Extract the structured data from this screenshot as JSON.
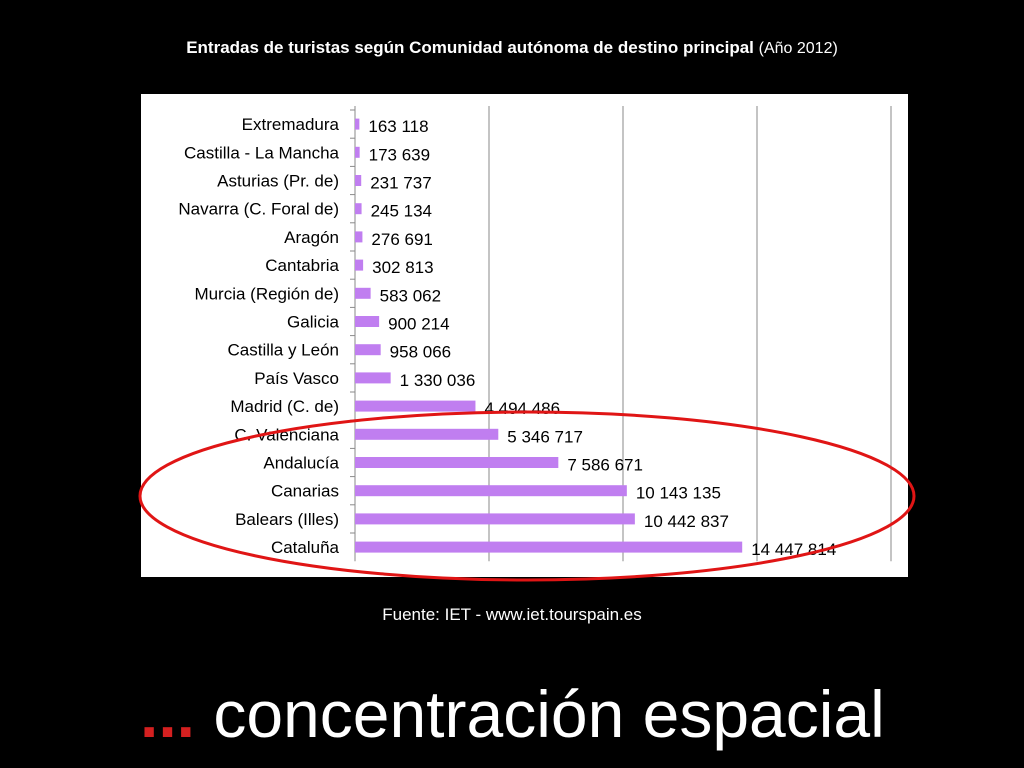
{
  "title": {
    "main": "Entradas de turistas según Comunidad autónoma de destino principal",
    "year": "(Año 2012)"
  },
  "source": "Fuente: IET - www.iet.tourspain.es",
  "caption": {
    "dots": "...",
    "text": " concentración espacial"
  },
  "colors": {
    "background": "#000000",
    "panel": "#ffffff",
    "bar": "#c07ef0",
    "highlight": "#e01515",
    "dots": "#d42020"
  },
  "chart_data": {
    "type": "bar",
    "orientation": "horizontal",
    "categories": [
      "Extremadura",
      "Castilla - La Mancha",
      "Asturias (Pr. de)",
      "Navarra (C. Foral de)",
      "Aragón",
      "Cantabria",
      "Murcia (Región de)",
      "Galicia",
      "Castilla y León",
      "País Vasco",
      "Madrid (C. de)",
      "C. Valenciana",
      "Andalucía",
      "Canarias",
      "Balears (Illes)",
      "Cataluña"
    ],
    "values": [
      163118,
      173639,
      231737,
      245134,
      276691,
      302813,
      583062,
      900214,
      958066,
      1330036,
      4494486,
      5346717,
      7586671,
      10143135,
      10442837,
      14447814
    ],
    "value_labels": [
      "163 118",
      "173 639",
      "231 737",
      "245 134",
      "276 691",
      "302 813",
      "583 062",
      "900 214",
      "958 066",
      "1 330 036",
      "4 494 486",
      "5 346 717",
      "7 586 671",
      "10 143 135",
      "10 442 837",
      "14 447 814"
    ],
    "xlim": [
      0,
      20000000
    ],
    "grid": true,
    "highlighted_categories": [
      "C. Valenciana",
      "Andalucía",
      "Canarias",
      "Balears (Illes)",
      "Cataluña"
    ]
  }
}
